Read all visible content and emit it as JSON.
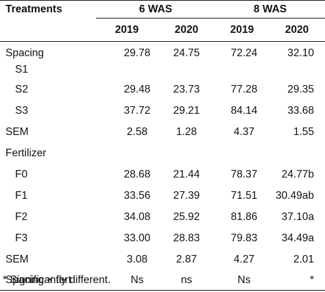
{
  "table": {
    "header": {
      "treatments": "Treatments",
      "group1": "6 WAS",
      "group2": "8 WAS",
      "years": [
        "2019",
        "2020",
        "2019",
        "2020"
      ]
    },
    "rows": [
      {
        "label": "Spacing",
        "indent": false,
        "values": [
          "29.78",
          "24.75",
          "72.24",
          "32.10"
        ]
      },
      {
        "label": "S1",
        "indent": true,
        "values": [
          "",
          "",
          "",
          ""
        ]
      },
      {
        "label": "S2",
        "indent": true,
        "values": [
          "29.48",
          "23.73",
          "77.28",
          "29.35"
        ]
      },
      {
        "label": "S3",
        "indent": true,
        "values": [
          "37.72",
          "29.21",
          "84.14",
          "33.68"
        ]
      },
      {
        "label": "SEM",
        "indent": false,
        "values": [
          "2.58",
          "1.28",
          "4.37",
          "1.55"
        ]
      },
      {
        "label": "Fertilizer",
        "indent": false,
        "values": [
          "",
          "",
          "",
          ""
        ]
      },
      {
        "label": "F0",
        "indent": true,
        "values": [
          "28.68",
          "21.44",
          "78.37",
          "24.77b"
        ]
      },
      {
        "label": "F1",
        "indent": true,
        "values": [
          "33.56",
          "27.39",
          "71.51",
          "30.49ab"
        ]
      },
      {
        "label": "F2",
        "indent": true,
        "values": [
          "34.08",
          "25.92",
          "81.86",
          "37.10a"
        ]
      },
      {
        "label": "F3",
        "indent": true,
        "values": [
          "33.00",
          "28.83",
          "79.83",
          "34.49a"
        ]
      },
      {
        "label": "SEM",
        "indent": false,
        "values": [
          "3.08",
          "2.87",
          "4.27",
          "2.01"
        ]
      },
      {
        "label": "Spacing × fert",
        "indent": false,
        "values": [
          "Ns",
          "ns",
          "Ns",
          "*"
        ]
      }
    ]
  },
  "footnote": "* Significantly different."
}
